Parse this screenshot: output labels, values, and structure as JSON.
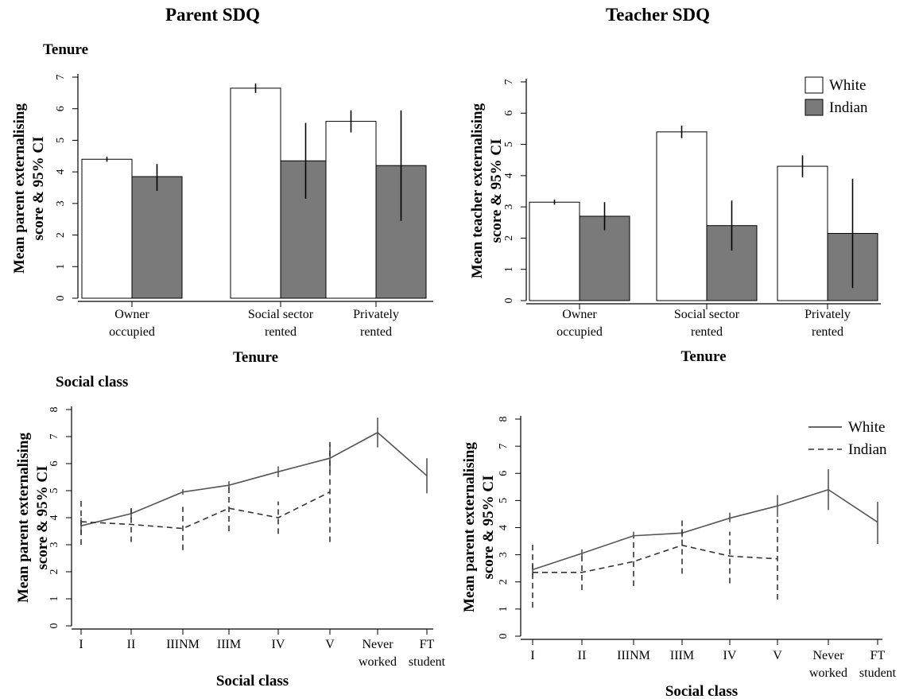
{
  "titles": {
    "left": "Parent SDQ",
    "right": "Teacher SDQ",
    "tenure_section": "Tenure",
    "social_section": "Social class"
  },
  "colors": {
    "white_fill": "#ffffff",
    "indian_fill": "#7a7a7a",
    "white_line": "#555555",
    "indian_line": "#333333"
  },
  "chart_data": [
    {
      "id": "parent-tenure",
      "type": "bar",
      "title": "Tenure",
      "xlabel": "Tenure",
      "ylabel": [
        "Mean parent externalising",
        "score & 95% CI"
      ],
      "ylim": [
        0,
        7
      ],
      "yticks": [
        0,
        1,
        2,
        3,
        4,
        5,
        6,
        7
      ],
      "categories": [
        [
          "Owner",
          "occupied"
        ],
        [
          "Social sector",
          "rented"
        ],
        [
          "Privately",
          "rented"
        ]
      ],
      "series": [
        {
          "name": "White",
          "values": [
            4.4,
            6.65,
            5.6
          ],
          "ci": [
            [
              4.32,
              4.48
            ],
            [
              6.5,
              6.8
            ],
            [
              5.25,
              5.95
            ]
          ]
        },
        {
          "name": "Indian",
          "values": [
            3.85,
            4.35,
            4.2
          ],
          "ci": [
            [
              3.4,
              4.25
            ],
            [
              3.15,
              5.55
            ],
            [
              2.45,
              5.95
            ]
          ]
        }
      ]
    },
    {
      "id": "teacher-tenure",
      "type": "bar",
      "xlabel": "Tenure",
      "ylabel": [
        "Mean teacher externalising",
        "score & 95% CI"
      ],
      "ylim": [
        0,
        7
      ],
      "yticks": [
        0,
        1,
        2,
        3,
        4,
        5,
        6,
        7
      ],
      "legend": {
        "position": "top-right",
        "entries": [
          "White",
          "Indian"
        ]
      },
      "categories": [
        [
          "Owner",
          "occupied"
        ],
        [
          "Social sector",
          "rented"
        ],
        [
          "Privately",
          "rented"
        ]
      ],
      "series": [
        {
          "name": "White",
          "values": [
            3.15,
            5.4,
            4.3
          ],
          "ci": [
            [
              3.07,
              3.23
            ],
            [
              5.2,
              5.6
            ],
            [
              3.95,
              4.65
            ]
          ]
        },
        {
          "name": "Indian",
          "values": [
            2.7,
            2.4,
            2.15
          ],
          "ci": [
            [
              2.25,
              3.15
            ],
            [
              1.6,
              3.2
            ],
            [
              0.4,
              3.9
            ]
          ]
        }
      ]
    },
    {
      "id": "parent-social",
      "type": "line",
      "title": "Social class",
      "xlabel": "Social class",
      "ylabel": [
        "Mean parent externalising",
        "score & 95% CI"
      ],
      "ylim": [
        0,
        8
      ],
      "yticks": [
        0,
        1,
        2,
        3,
        4,
        5,
        6,
        7,
        8
      ],
      "categories": [
        [
          "I"
        ],
        [
          "II"
        ],
        [
          "IIINM"
        ],
        [
          "IIIM"
        ],
        [
          "IV"
        ],
        [
          "V"
        ],
        [
          "Never",
          "worked"
        ],
        [
          "FT",
          "student"
        ]
      ],
      "series": [
        {
          "name": "White",
          "style": "solid",
          "values": [
            3.7,
            4.15,
            4.95,
            5.2,
            5.7,
            6.2,
            7.15,
            5.55
          ],
          "ci": [
            [
              3.4,
              4.0
            ],
            [
              3.95,
              4.35
            ],
            [
              4.85,
              5.05
            ],
            [
              5.05,
              5.35
            ],
            [
              5.5,
              5.9
            ],
            [
              5.7,
              6.7
            ],
            [
              6.6,
              7.7
            ],
            [
              4.9,
              6.2
            ]
          ]
        },
        {
          "name": "Indian",
          "style": "dashed",
          "values": [
            3.85,
            3.75,
            3.6,
            4.35,
            4.0,
            4.95,
            null,
            null
          ],
          "ci": [
            [
              3.0,
              4.75
            ],
            [
              3.1,
              4.35
            ],
            [
              2.8,
              4.4
            ],
            [
              3.5,
              5.15
            ],
            [
              3.4,
              4.6
            ],
            [
              3.1,
              6.8
            ],
            null,
            null
          ]
        }
      ]
    },
    {
      "id": "teacher-social",
      "type": "line",
      "xlabel": "Social class",
      "ylabel": [
        "Mean parent externalising",
        "score & 95% CI"
      ],
      "ylim": [
        0,
        8
      ],
      "yticks": [
        0,
        1,
        2,
        3,
        4,
        5,
        6,
        7,
        8
      ],
      "legend": {
        "position": "top-right",
        "entries": [
          "White",
          "Indian"
        ]
      },
      "categories": [
        [
          "I"
        ],
        [
          "II"
        ],
        [
          "IIINM"
        ],
        [
          "IIIM"
        ],
        [
          "IV"
        ],
        [
          "V"
        ],
        [
          "Never",
          "worked"
        ],
        [
          "FT",
          "student"
        ]
      ],
      "series": [
        {
          "name": "White",
          "style": "solid",
          "values": [
            2.45,
            3.05,
            3.7,
            3.8,
            4.35,
            4.8,
            5.4,
            4.2
          ],
          "ci": [
            [
              2.25,
              2.7
            ],
            [
              2.95,
              3.2
            ],
            [
              3.6,
              3.85
            ],
            [
              3.65,
              3.95
            ],
            [
              4.2,
              4.55
            ],
            [
              4.4,
              5.2
            ],
            [
              4.65,
              6.15
            ],
            [
              3.4,
              4.95
            ]
          ]
        },
        {
          "name": "Indian",
          "style": "dashed",
          "values": [
            2.35,
            2.35,
            2.75,
            3.35,
            2.95,
            2.85,
            null,
            null
          ],
          "ci": [
            [
              1.05,
              3.45
            ],
            [
              1.7,
              3.05
            ],
            [
              1.85,
              3.65
            ],
            [
              2.3,
              4.3
            ],
            [
              1.95,
              3.85
            ],
            [
              1.35,
              4.3
            ],
            null,
            null
          ]
        }
      ]
    }
  ]
}
